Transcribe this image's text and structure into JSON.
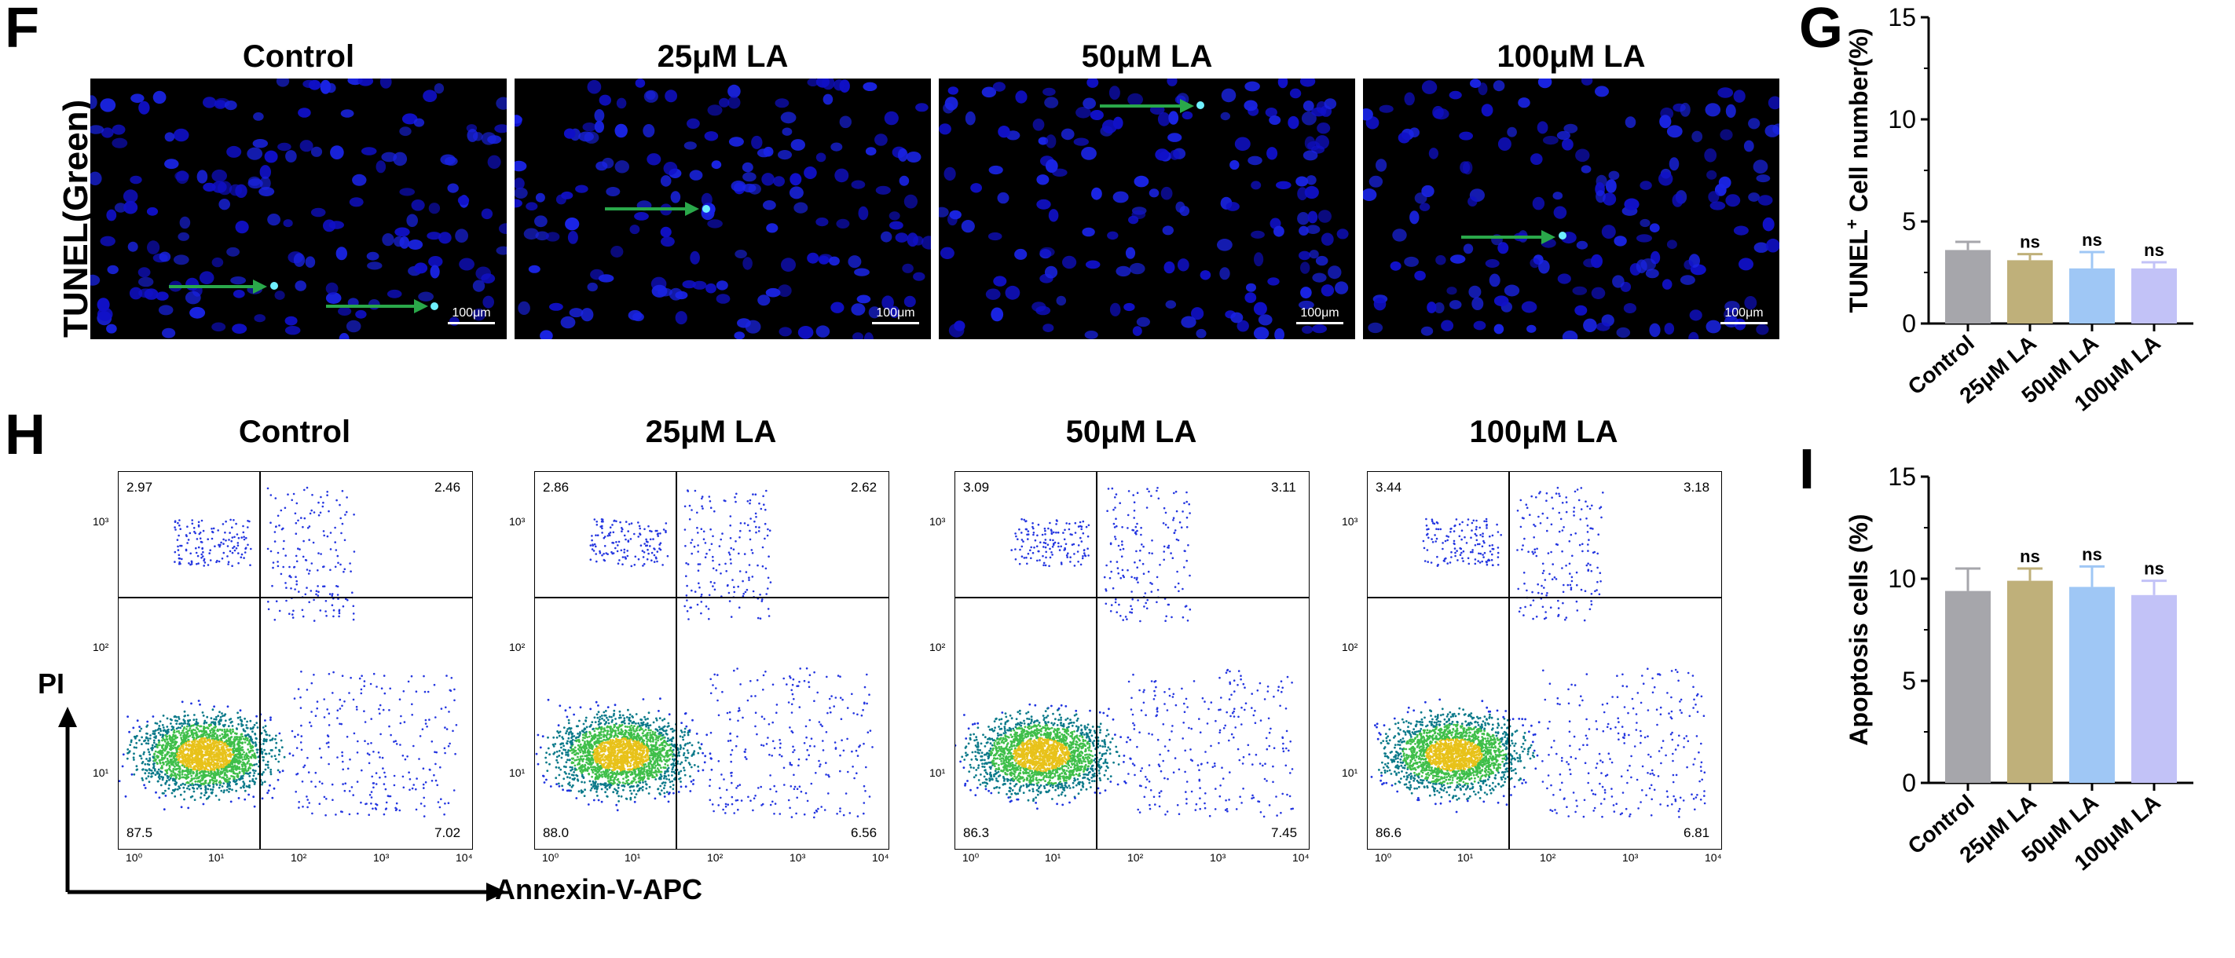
{
  "panels": {
    "F": "F",
    "G": "G",
    "H": "H",
    "I": "I"
  },
  "tunel": {
    "row_label": "TUNEL(Green)",
    "scale_bar": "100μm",
    "groups": [
      "Control",
      "25μM LA",
      "50μM LA",
      "100μM LA"
    ]
  },
  "flow": {
    "groups": [
      "Control",
      "25μM LA",
      "50μM LA",
      "100μM LA"
    ],
    "y_axis_label": "PI",
    "x_axis_label": "Annexin-V-APC",
    "quadrants": [
      {
        "ul": "2.97",
        "ur": "2.46",
        "ll": "87.5",
        "lr": "7.02"
      },
      {
        "ul": "2.86",
        "ur": "2.62",
        "ll": "88.0",
        "lr": "6.56"
      },
      {
        "ul": "3.09",
        "ur": "3.11",
        "ll": "86.3",
        "lr": "7.45"
      },
      {
        "ul": "3.44",
        "ur": "3.18",
        "ll": "86.6",
        "lr": "6.81"
      }
    ],
    "y_ticks": [
      "10³",
      "10²",
      "10¹"
    ],
    "x_ticks": [
      "10⁰",
      "10¹",
      "10²",
      "10³",
      "10⁴"
    ]
  },
  "chart_data": [
    {
      "type": "bar",
      "panel": "G",
      "ylabel": "TUNEL⁺ Cell number(%)",
      "ylabel_main": "TUNEL",
      "ylabel_sup": "+",
      "ylabel_rest": " Cell number(%)",
      "categories": [
        "Control",
        "25μM LA",
        "50μM LA",
        "100μM LA"
      ],
      "values": [
        3.6,
        3.1,
        2.7,
        2.7
      ],
      "errors": [
        0.4,
        0.3,
        0.8,
        0.3
      ],
      "colors": [
        "#a6a6ab",
        "#bfb07a",
        "#9fc7f5",
        "#c2c2f7"
      ],
      "annotations": [
        "",
        "ns",
        "ns",
        "ns"
      ],
      "ylim": [
        0,
        15
      ],
      "yticks": [
        "0",
        "5",
        "10",
        "15"
      ]
    },
    {
      "type": "bar",
      "panel": "I",
      "ylabel": "Apoptosis cells (%)",
      "categories": [
        "Control",
        "25μM LA",
        "50μM LA",
        "100μM LA"
      ],
      "values": [
        9.4,
        9.9,
        9.6,
        9.2
      ],
      "errors": [
        1.1,
        0.6,
        1.0,
        0.7
      ],
      "colors": [
        "#a6a6ab",
        "#bfb07a",
        "#9fc7f5",
        "#c2c2f7"
      ],
      "annotations": [
        "",
        "ns",
        "ns",
        "ns"
      ],
      "ylim": [
        0,
        15
      ],
      "yticks": [
        "0",
        "5",
        "10",
        "15"
      ]
    }
  ]
}
